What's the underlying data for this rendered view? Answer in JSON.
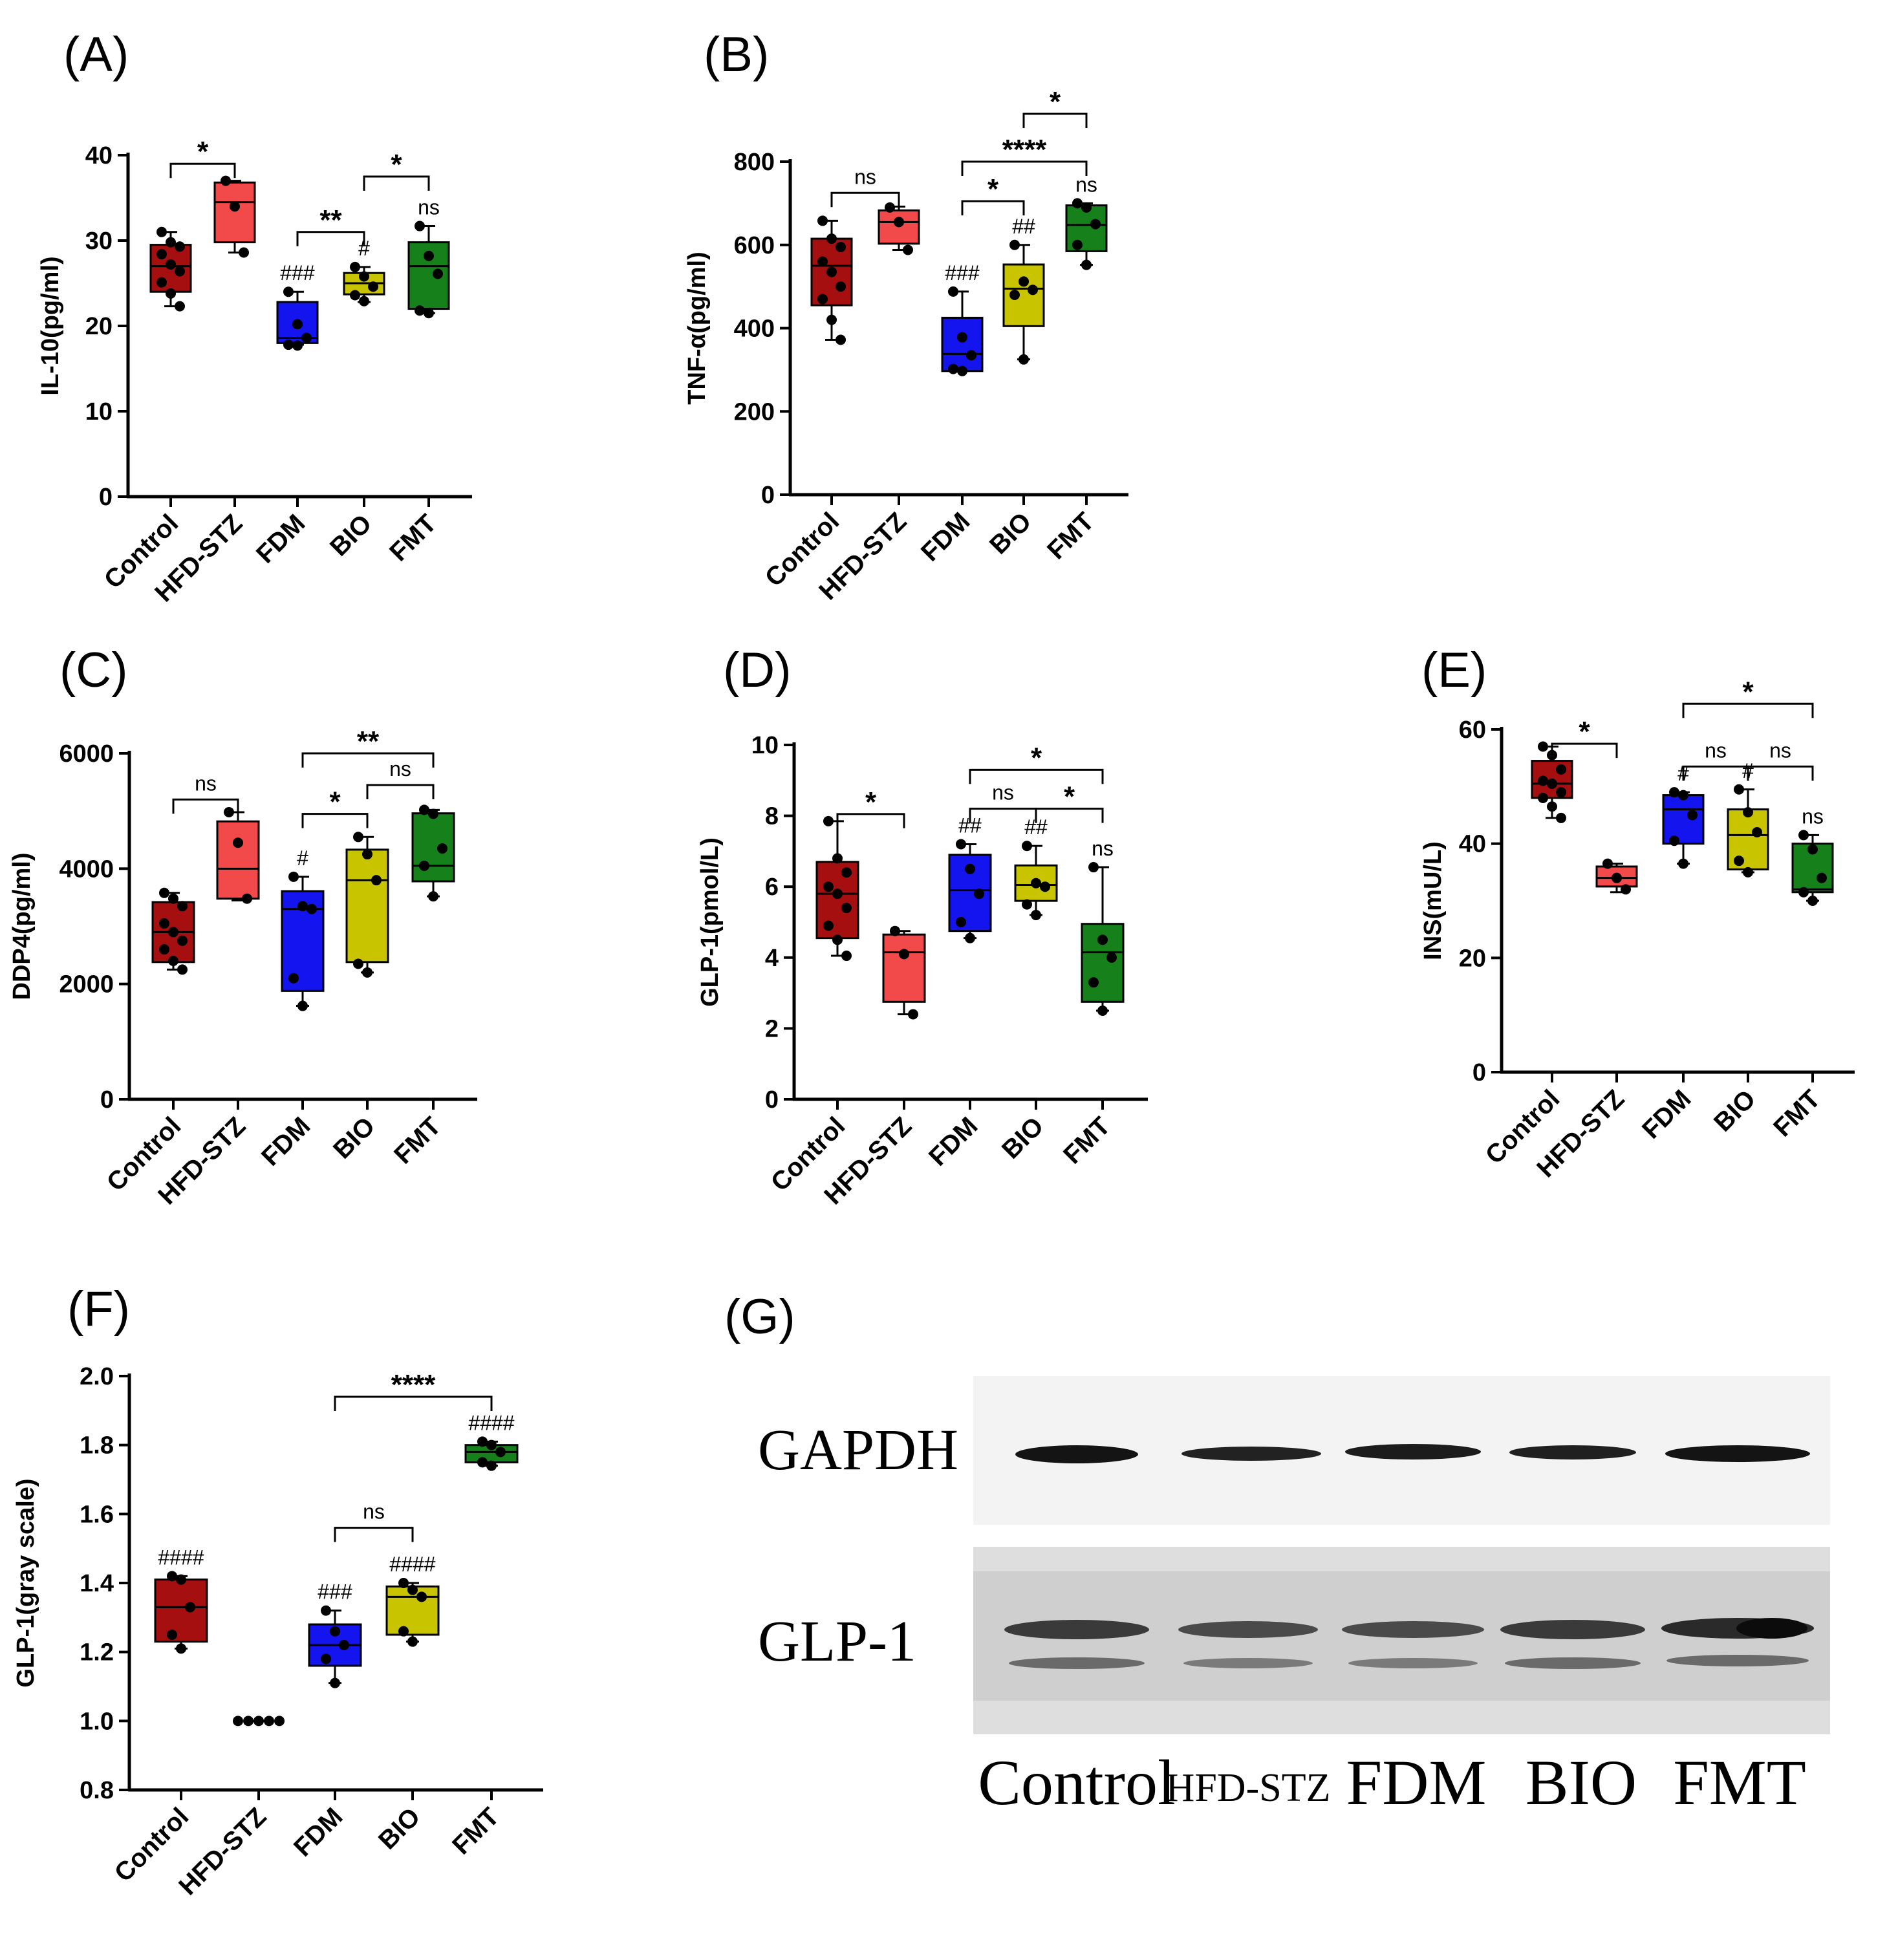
{
  "group_colors": {
    "Control": "#a50f0f",
    "HFD-STZ": "#f24a4a",
    "FDM": "#1414ee",
    "BIO": "#c8c400",
    "FMT": "#16801a"
  },
  "chart_data": [
    {
      "id": "A",
      "panel_label": "(A)",
      "type": "box",
      "ylabel": "IL-10(pg/ml)",
      "ylim": [
        0,
        40
      ],
      "yticks": [
        0,
        10,
        20,
        30,
        40
      ],
      "ytick_labels": [
        "0",
        "10",
        "20",
        "30",
        "40"
      ],
      "categories": [
        "Control",
        "HFD-STZ",
        "FDM",
        "BIO",
        "FMT"
      ],
      "boxes": [
        {
          "q1": 24,
          "median": 27,
          "q3": 29.5,
          "min": 22.3,
          "max": 31
        },
        {
          "q1": 29.8,
          "median": 34.5,
          "q3": 36.8,
          "min": 28.6,
          "max": 37
        },
        {
          "q1": 18,
          "median": 18.6,
          "q3": 22.8,
          "min": 17.8,
          "max": 24
        },
        {
          "q1": 23.7,
          "median": 25,
          "q3": 26.2,
          "min": 22.8,
          "max": 26.9
        },
        {
          "q1": 22,
          "median": 27,
          "q3": 29.8,
          "min": 21.5,
          "max": 31.7
        }
      ],
      "points": [
        [
          31,
          29.8,
          29.3,
          28.4,
          27.2,
          26.4,
          25.1,
          23.8,
          22.3
        ],
        [
          37,
          34,
          28.6
        ],
        [
          24,
          20.2,
          18.6,
          17.8,
          17.7
        ],
        [
          26.9,
          25.8,
          24.6,
          23.6,
          22.9
        ],
        [
          31.7,
          28.2,
          26.1,
          21.8,
          21.5
        ]
      ],
      "marks": [
        "",
        "",
        "###",
        "#",
        "ns"
      ],
      "comparisons": [
        {
          "from": 0,
          "to": 1,
          "label": "*",
          "y": 39
        },
        {
          "from": 2,
          "to": 3,
          "label": "**",
          "y": 31
        },
        {
          "from": 3,
          "to": 4,
          "label": "*",
          "y": 37.5
        }
      ]
    },
    {
      "id": "B",
      "panel_label": "(B)",
      "type": "box",
      "ylabel": "TNF-α(pg/ml)",
      "ylim": [
        0,
        800
      ],
      "yticks": [
        0,
        200,
        400,
        600,
        800
      ],
      "ytick_labels": [
        "0",
        "200",
        "400",
        "600",
        "800"
      ],
      "categories": [
        "Control",
        "HFD-STZ",
        "FDM",
        "BIO",
        "FMT"
      ],
      "boxes": [
        {
          "q1": 455,
          "median": 550,
          "q3": 615,
          "min": 372,
          "max": 658
        },
        {
          "q1": 603,
          "median": 655,
          "q3": 683,
          "min": 588,
          "max": 692
        },
        {
          "q1": 297,
          "median": 338,
          "q3": 425,
          "min": 297,
          "max": 488
        },
        {
          "q1": 405,
          "median": 495,
          "q3": 553,
          "min": 325,
          "max": 600
        },
        {
          "q1": 585,
          "median": 648,
          "q3": 695,
          "min": 552,
          "max": 700
        }
      ],
      "points": [
        [
          658,
          615,
          595,
          560,
          535,
          500,
          470,
          420,
          372
        ],
        [
          690,
          655,
          588
        ],
        [
          488,
          378,
          335,
          302,
          297
        ],
        [
          600,
          512,
          492,
          480,
          325
        ],
        [
          700,
          690,
          650,
          600,
          552
        ]
      ],
      "marks": [
        "",
        "",
        "###",
        "##",
        "ns"
      ],
      "comparisons": [
        {
          "from": 0,
          "to": 1,
          "label": "ns",
          "y": 725
        },
        {
          "from": 2,
          "to": 3,
          "label": "*",
          "y": 705
        },
        {
          "from": 2,
          "to": 4,
          "label": "****",
          "y": 800
        },
        {
          "from": 3,
          "to": 4,
          "label": "*",
          "y": 915
        }
      ]
    },
    {
      "id": "C",
      "panel_label": "(C)",
      "type": "box",
      "ylabel": "DDP4(pg/ml)",
      "ylim": [
        0,
        6000
      ],
      "yticks": [
        0,
        2000,
        4000,
        6000
      ],
      "ytick_labels": [
        "0",
        "2000",
        "4000",
        "6000"
      ],
      "categories": [
        "Control",
        "HFD-STZ",
        "FDM",
        "BIO",
        "FMT"
      ],
      "boxes": [
        {
          "q1": 2380,
          "median": 2900,
          "q3": 3420,
          "min": 2250,
          "max": 3580
        },
        {
          "q1": 3480,
          "median": 4000,
          "q3": 4820,
          "min": 3450,
          "max": 4980
        },
        {
          "q1": 1880,
          "median": 3300,
          "q3": 3610,
          "min": 1620,
          "max": 3860
        },
        {
          "q1": 2380,
          "median": 3800,
          "q3": 4330,
          "min": 2200,
          "max": 4550
        },
        {
          "q1": 3780,
          "median": 4050,
          "q3": 4960,
          "min": 3520,
          "max": 5020
        }
      ],
      "points": [
        [
          3580,
          3480,
          3350,
          3050,
          2900,
          2750,
          2600,
          2400,
          2250
        ],
        [
          4980,
          4450,
          3480
        ],
        [
          3860,
          3350,
          3300,
          2100,
          1620
        ],
        [
          4550,
          4250,
          3800,
          2350,
          2200
        ],
        [
          5020,
          4950,
          4350,
          4050,
          3520
        ]
      ],
      "marks": [
        "",
        "",
        "#",
        "",
        ""
      ],
      "comparisons": [
        {
          "from": 0,
          "to": 1,
          "label": "ns",
          "y": 5200
        },
        {
          "from": 2,
          "to": 3,
          "label": "*",
          "y": 4950
        },
        {
          "from": 3,
          "to": 4,
          "label": "ns",
          "y": 5450
        },
        {
          "from": 2,
          "to": 4,
          "label": "**",
          "y": 6000
        }
      ]
    },
    {
      "id": "D",
      "panel_label": "(D)",
      "type": "box",
      "ylabel": "GLP-1(pmol/L)",
      "ylim": [
        0,
        10
      ],
      "yticks": [
        0,
        2,
        4,
        6,
        8,
        10
      ],
      "ytick_labels": [
        "0",
        "2",
        "4",
        "6",
        "8",
        "10"
      ],
      "categories": [
        "Control",
        "HFD-STZ",
        "FDM",
        "BIO",
        "FMT"
      ],
      "boxes": [
        {
          "q1": 4.55,
          "median": 5.8,
          "q3": 6.7,
          "min": 4.05,
          "max": 7.85
        },
        {
          "q1": 2.75,
          "median": 4.15,
          "q3": 4.65,
          "min": 2.4,
          "max": 4.75
        },
        {
          "q1": 4.75,
          "median": 5.9,
          "q3": 6.9,
          "min": 4.55,
          "max": 7.2
        },
        {
          "q1": 5.6,
          "median": 6.05,
          "q3": 6.6,
          "min": 5.2,
          "max": 7.15
        },
        {
          "q1": 2.75,
          "median": 4.15,
          "q3": 4.95,
          "min": 2.5,
          "max": 6.55
        }
      ],
      "points": [
        [
          7.85,
          6.8,
          6.4,
          6.0,
          5.8,
          5.4,
          4.9,
          4.5,
          4.05
        ],
        [
          4.75,
          4.1,
          2.4
        ],
        [
          7.2,
          6.5,
          5.8,
          5.0,
          4.55
        ],
        [
          7.15,
          6.1,
          6.0,
          5.5,
          5.2
        ],
        [
          6.55,
          4.5,
          4.0,
          3.3,
          2.5
        ]
      ],
      "marks": [
        "",
        "",
        "##",
        "##",
        "ns"
      ],
      "comparisons": [
        {
          "from": 0,
          "to": 1,
          "label": "*",
          "y": 8.05
        },
        {
          "from": 2,
          "to": 3,
          "label": "ns",
          "y": 8.2
        },
        {
          "from": 3,
          "to": 4,
          "label": "*",
          "y": 8.2
        },
        {
          "from": 2,
          "to": 4,
          "label": "*",
          "y": 9.3
        }
      ]
    },
    {
      "id": "E",
      "panel_label": "(E)",
      "type": "box",
      "ylabel": "INS(mU/L)",
      "ylim": [
        0,
        60
      ],
      "yticks": [
        0,
        20,
        40,
        60
      ],
      "ytick_labels": [
        "0",
        "20",
        "40",
        "60"
      ],
      "categories": [
        "Control",
        "HFD-STZ",
        "FDM",
        "BIO",
        "FMT"
      ],
      "boxes": [
        {
          "q1": 48,
          "median": 50.5,
          "q3": 54.5,
          "min": 44.5,
          "max": 57
        },
        {
          "q1": 32.5,
          "median": 34,
          "q3": 36,
          "min": 31.5,
          "max": 36.5
        },
        {
          "q1": 40,
          "median": 46,
          "q3": 48.5,
          "min": 36.5,
          "max": 49
        },
        {
          "q1": 35.5,
          "median": 41.5,
          "q3": 46,
          "min": 35,
          "max": 49.5
        },
        {
          "q1": 31.5,
          "median": 32,
          "q3": 40,
          "min": 30,
          "max": 41.5
        }
      ],
      "points": [
        [
          57,
          55.5,
          53,
          51,
          50.5,
          49,
          48,
          46.5,
          44.5
        ],
        [
          36.5,
          34,
          32
        ],
        [
          49,
          48.5,
          45,
          40.5,
          36.5
        ],
        [
          49.5,
          45.5,
          42,
          37,
          35
        ],
        [
          41.5,
          39,
          34,
          31.5,
          30
        ]
      ],
      "marks": [
        "",
        "",
        "#",
        "#",
        "ns"
      ],
      "comparisons": [
        {
          "from": 0,
          "to": 1,
          "label": "*",
          "y": 57.5
        },
        {
          "from": 2,
          "to": 3,
          "label": "ns",
          "y": 53.5
        },
        {
          "from": 3,
          "to": 4,
          "label": "ns",
          "y": 53.5
        },
        {
          "from": 2,
          "to": 4,
          "label": "*",
          "y": 64.5
        }
      ]
    },
    {
      "id": "F",
      "panel_label": "(F)",
      "type": "box",
      "ylabel": "GLP-1(gray scale)",
      "ylim": [
        0.8,
        2.0
      ],
      "yticks": [
        0.8,
        1.0,
        1.2,
        1.4,
        1.6,
        1.8,
        2.0
      ],
      "ytick_labels": [
        "0.8",
        "1.0",
        "1.2",
        "1.4",
        "1.6",
        "1.8",
        "2.0"
      ],
      "categories": [
        "Control",
        "HFD-STZ",
        "FDM",
        "BIO",
        "FMT"
      ],
      "boxes": [
        {
          "q1": 1.23,
          "median": 1.33,
          "q3": 1.41,
          "min": 1.21,
          "max": 1.42
        },
        {
          "q1": 1.0,
          "median": 1.0,
          "q3": 1.0,
          "min": 1.0,
          "max": 1.0
        },
        {
          "q1": 1.16,
          "median": 1.22,
          "q3": 1.28,
          "min": 1.11,
          "max": 1.32
        },
        {
          "q1": 1.25,
          "median": 1.36,
          "q3": 1.39,
          "min": 1.23,
          "max": 1.4
        },
        {
          "q1": 1.75,
          "median": 1.78,
          "q3": 1.8,
          "min": 1.74,
          "max": 1.81
        }
      ],
      "points": [
        [
          1.42,
          1.41,
          1.33,
          1.25,
          1.21
        ],
        [
          1.0,
          1.0,
          1.0,
          1.0,
          1.0
        ],
        [
          1.32,
          1.26,
          1.22,
          1.18,
          1.11
        ],
        [
          1.4,
          1.38,
          1.36,
          1.26,
          1.23
        ],
        [
          1.81,
          1.8,
          1.78,
          1.75,
          1.74
        ]
      ],
      "marks": [
        "####",
        "",
        "###",
        "####",
        "####"
      ],
      "comparisons": [
        {
          "from": 2,
          "to": 3,
          "label": "ns",
          "y": 1.56
        },
        {
          "from": 2,
          "to": 4,
          "label": "****",
          "y": 1.94
        }
      ]
    }
  ],
  "western_blot": {
    "panel_label": "(G)",
    "row_labels": [
      "GAPDH",
      "GLP-1"
    ],
    "lanes": [
      "Control",
      "HFD-STZ",
      "FDM",
      "BIO",
      "FMT"
    ]
  }
}
